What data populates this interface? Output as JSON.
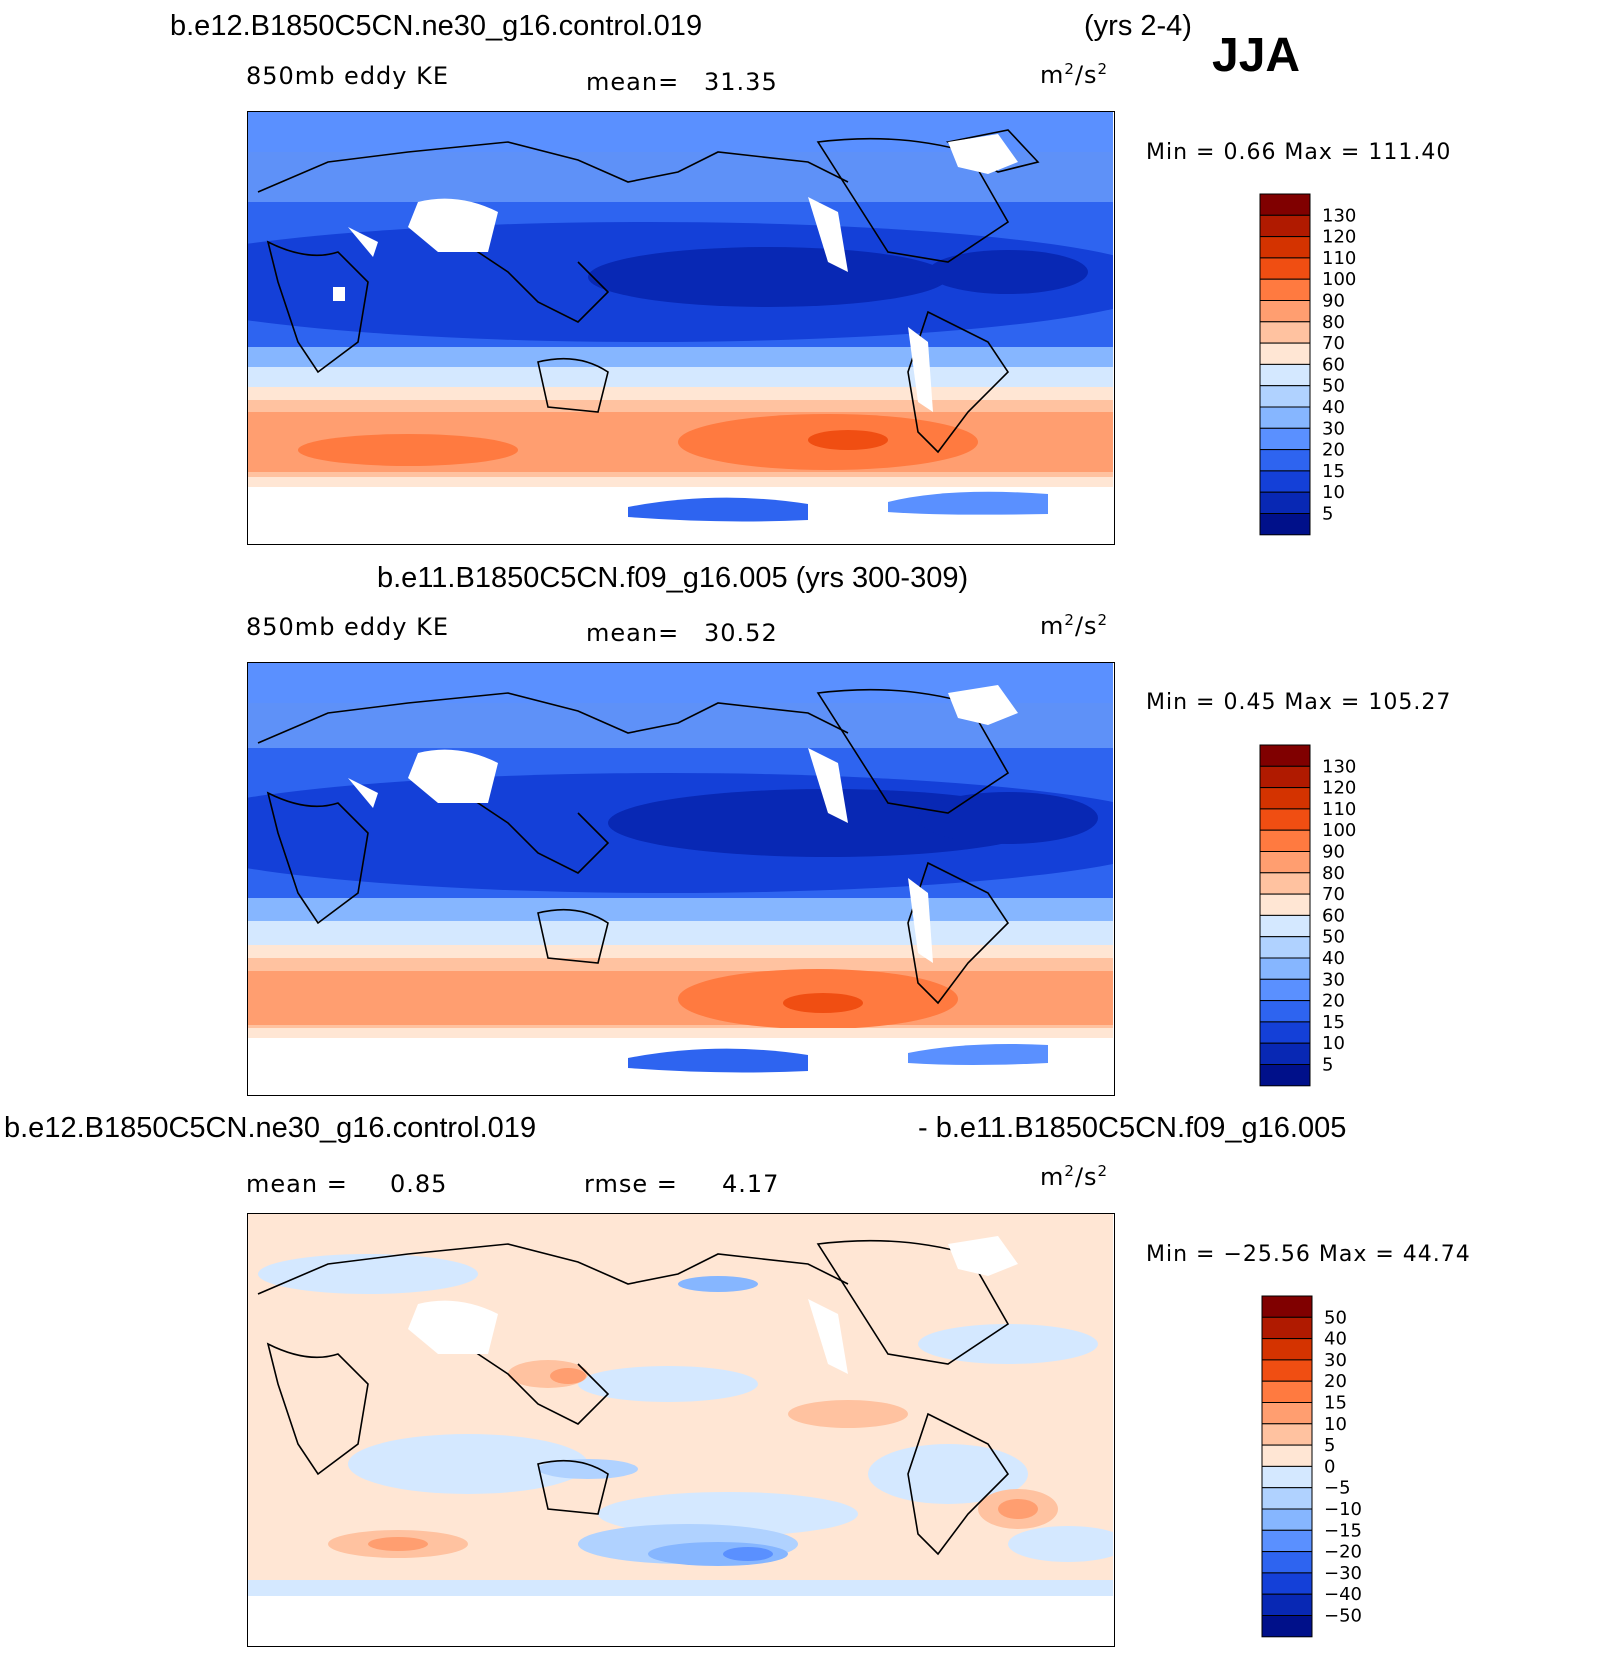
{
  "figure": {
    "season": "JJA",
    "panel1": {
      "case": "b.e12.B1850C5CN.ne30_g16.control.019",
      "years": "(yrs 2-4)",
      "variable": "850mb eddy KE",
      "mean_label": "mean=",
      "mean_value": "31.35",
      "units_base": "m",
      "units_exp1": "2",
      "units_mid": "/s",
      "units_exp2": "2",
      "minmax": "Min =    0.66  Max  =  111.40"
    },
    "panel2": {
      "case_and_years": "b.e11.B1850C5CN.f09_g16.005 (yrs 300-309)",
      "variable": "850mb eddy KE",
      "mean_label": "mean=",
      "mean_value": "30.52",
      "units_base": "m",
      "units_exp1": "2",
      "units_mid": "/s",
      "units_exp2": "2",
      "minmax": "Min =    0.45  Max  =  105.27"
    },
    "panel3": {
      "case_a": "b.e12.B1850C5CN.ne30_g16.control.019",
      "case_b": "- b.e11.B1850C5CN.f09_g16.005",
      "mean_label": "mean  =",
      "mean_value": "0.85",
      "rmse_label": "rmse  =",
      "rmse_value": "4.17",
      "units_base": "m",
      "units_exp1": "2",
      "units_mid": "/s",
      "units_exp2": "2",
      "minmax": "Min  =  −25.56  Max  =    44.74"
    }
  },
  "chart_data": [
    {
      "type": "heatmap",
      "title": "b.e12.B1850C5CN.ne30_g16.control.019 (yrs 2-4) JJA",
      "variable": "850mb eddy KE",
      "units": "m2/s2",
      "mean": 31.35,
      "min": 0.66,
      "max": 111.4,
      "colorbar_levels": [
        "130",
        "120",
        "110",
        "100",
        "90",
        "80",
        "70",
        "60",
        "50",
        "40",
        "30",
        "20",
        "15",
        "10",
        "5"
      ],
      "colors": [
        "#800000",
        "#b01a00",
        "#d43300",
        "#f04e12",
        "#ff7a40",
        "#ff9e70",
        "#ffc2a0",
        "#ffe6d4",
        "#d4e8ff",
        "#b0d2ff",
        "#86b6ff",
        "#5a90ff",
        "#2e64f0",
        "#1440d8",
        "#0828b4",
        "#00108a"
      ]
    },
    {
      "type": "heatmap",
      "title": "b.e11.B1850C5CN.f09_g16.005 (yrs 300-309)",
      "variable": "850mb eddy KE",
      "units": "m2/s2",
      "mean": 30.52,
      "min": 0.45,
      "max": 105.27,
      "colorbar_levels": [
        "130",
        "120",
        "110",
        "100",
        "90",
        "80",
        "70",
        "60",
        "50",
        "40",
        "30",
        "20",
        "15",
        "10",
        "5"
      ],
      "colors": [
        "#800000",
        "#b01a00",
        "#d43300",
        "#f04e12",
        "#ff7a40",
        "#ff9e70",
        "#ffc2a0",
        "#ffe6d4",
        "#d4e8ff",
        "#b0d2ff",
        "#86b6ff",
        "#5a90ff",
        "#2e64f0",
        "#1440d8",
        "#0828b4",
        "#00108a"
      ]
    },
    {
      "type": "heatmap",
      "title": "b.e12.B1850C5CN.ne30_g16.control.019 - b.e11.B1850C5CN.f09_g16.005",
      "units": "m2/s2",
      "mean": 0.85,
      "rmse": 4.17,
      "min": -25.56,
      "max": 44.74,
      "colorbar_levels": [
        "50",
        "40",
        "30",
        "20",
        "15",
        "10",
        "5",
        "0",
        "−5",
        "−10",
        "−15",
        "−20",
        "−30",
        "−40",
        "−50"
      ],
      "colors": [
        "#800000",
        "#b01a00",
        "#d43300",
        "#f04e12",
        "#ff7a40",
        "#ff9e70",
        "#ffc2a0",
        "#ffe6d4",
        "#d4e8ff",
        "#b0d2ff",
        "#86b6ff",
        "#5a90ff",
        "#2e64f0",
        "#1440d8",
        "#0828b4",
        "#00108a"
      ]
    }
  ]
}
